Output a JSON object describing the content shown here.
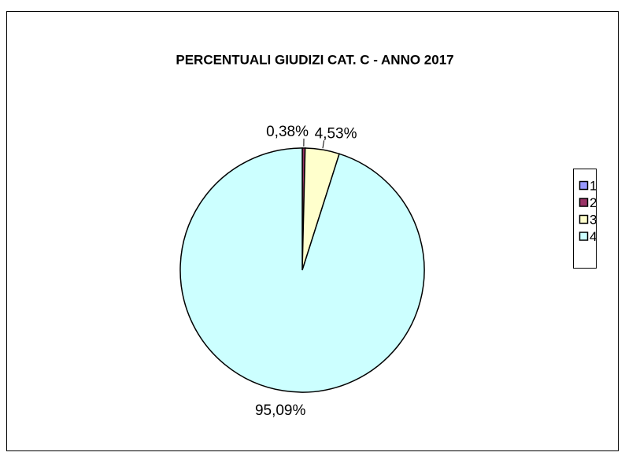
{
  "chart_data": {
    "type": "pie",
    "title": "PERCENTUALI GIUDIZI CAT. C - ANNO 2017",
    "categories": [
      "1",
      "2",
      "3",
      "4"
    ],
    "values": [
      0,
      0.38,
      4.53,
      95.09
    ],
    "value_labels": [
      null,
      "0,38%",
      "4,53%",
      "95,09%"
    ],
    "colors": [
      "#9999ff",
      "#993366",
      "#ffffcc",
      "#ccffff"
    ],
    "legend": "right"
  }
}
